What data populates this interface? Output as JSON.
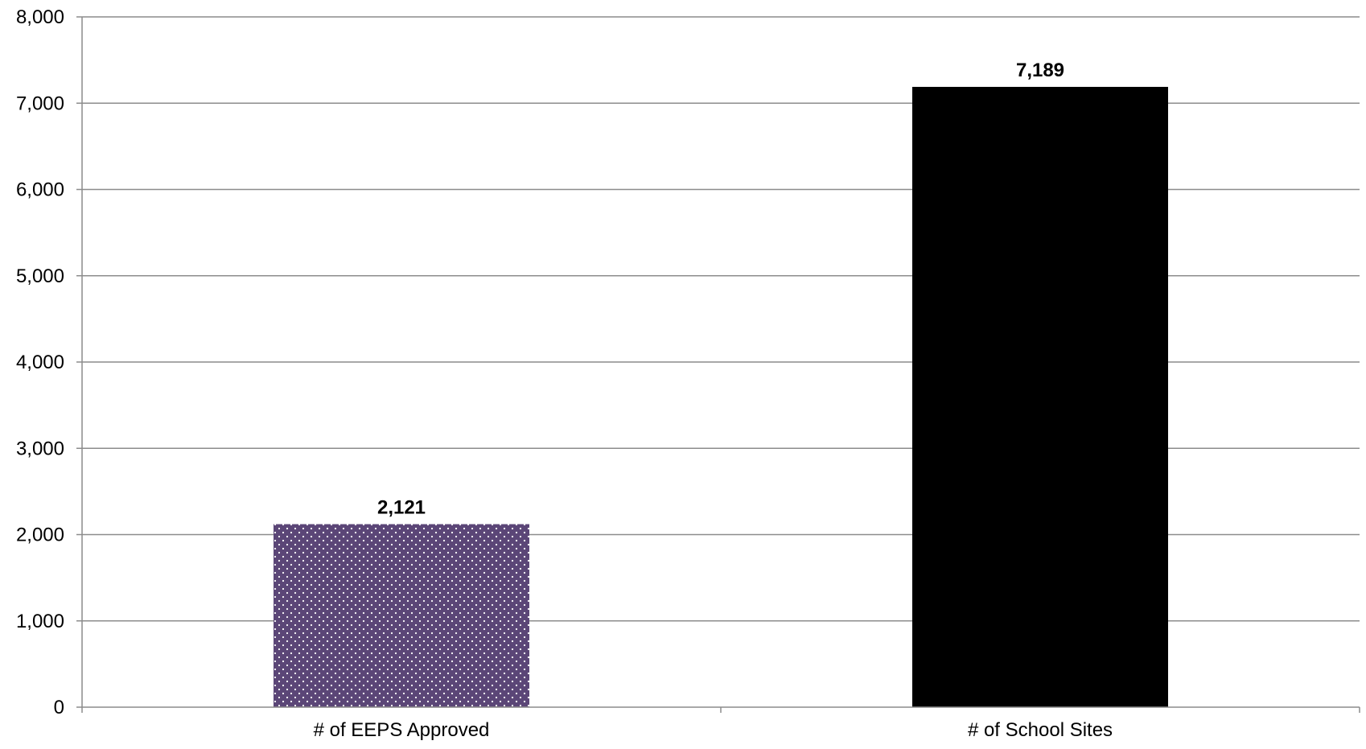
{
  "chart_data": {
    "type": "bar",
    "title": "",
    "xlabel": "",
    "ylabel": "",
    "categories": [
      "# of EEPS Approved",
      "# of School Sites"
    ],
    "values": [
      2121,
      7189
    ],
    "data_labels": [
      "2,121",
      "7,189"
    ],
    "ylim": [
      0,
      8000
    ],
    "yticks": [
      0,
      1000,
      2000,
      3000,
      4000,
      5000,
      6000,
      7000,
      8000
    ],
    "ytick_labels": [
      "0",
      "1,000",
      "2,000",
      "3,000",
      "4,000",
      "5,000",
      "6,000",
      "7,000",
      "8,000"
    ],
    "grid": true,
    "legend": "none",
    "bar_colors": [
      "#5b4677",
      "#000000"
    ],
    "bar_patterns": [
      "dotted",
      "solid"
    ],
    "pattern_dot_color": "#ffffff",
    "gridline_color": "#8c8c8c",
    "axis_color": "#8c8c8c",
    "label_color": "#000000"
  }
}
